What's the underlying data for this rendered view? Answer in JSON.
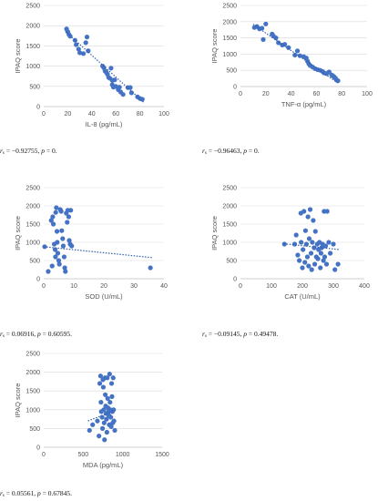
{
  "chart_data": [
    {
      "type": "scatter",
      "xlabel": "IL-8 (pg/mL)",
      "ylabel": "IPAQ score",
      "xlim": [
        0,
        100
      ],
      "ylim": [
        0,
        2500
      ],
      "xticks": [
        "0",
        "20",
        "40",
        "60",
        "80",
        "100"
      ],
      "yticks": [
        "0",
        "500",
        "1000",
        "1500",
        "2000",
        "2500"
      ],
      "trendline": {
        "style": "dotted",
        "x": [
          18,
          83
        ],
        "y": [
          1860,
          110
        ]
      },
      "grid": "horizontal",
      "stat_rs": "= −0.92755,",
      "stat_p": "= 0.",
      "points": [
        [
          19,
          1920
        ],
        [
          20,
          1850
        ],
        [
          21,
          1780
        ],
        [
          22,
          1740
        ],
        [
          26,
          1640
        ],
        [
          27,
          1530
        ],
        [
          29,
          1420
        ],
        [
          30,
          1330
        ],
        [
          33,
          1310
        ],
        [
          35,
          1580
        ],
        [
          36,
          1720
        ],
        [
          37,
          1380
        ],
        [
          49,
          1000
        ],
        [
          50,
          960
        ],
        [
          51,
          880
        ],
        [
          52,
          850
        ],
        [
          53,
          800
        ],
        [
          54,
          720
        ],
        [
          55,
          700
        ],
        [
          56,
          950
        ],
        [
          57,
          650
        ],
        [
          57,
          540
        ],
        [
          58,
          480
        ],
        [
          59,
          660
        ],
        [
          60,
          500
        ],
        [
          62,
          420
        ],
        [
          63,
          480
        ],
        [
          64,
          360
        ],
        [
          66,
          300
        ],
        [
          70,
          470
        ],
        [
          72,
          470
        ],
        [
          73,
          340
        ],
        [
          78,
          240
        ],
        [
          80,
          200
        ],
        [
          82,
          180
        ]
      ]
    },
    {
      "type": "scatter",
      "xlabel": "TNF-α (pg/mL)",
      "ylabel": "IPAQ score",
      "xlim": [
        0,
        100
      ],
      "ylim": [
        0,
        2500
      ],
      "xticks": [
        "0",
        "20",
        "40",
        "60",
        "80",
        "100"
      ],
      "yticks": [
        "0",
        "500",
        "1000",
        "1500",
        "2000",
        "2500"
      ],
      "trendline": {
        "style": "dotted",
        "x": [
          10,
          77
        ],
        "y": [
          1920,
          110
        ]
      },
      "grid": "horizontal",
      "stat_rs": "= −0.96463,",
      "stat_p": "= 0.",
      "points": [
        [
          11,
          1820
        ],
        [
          13,
          1850
        ],
        [
          15,
          1780
        ],
        [
          17,
          1800
        ],
        [
          18,
          1450
        ],
        [
          20,
          1930
        ],
        [
          25,
          1620
        ],
        [
          26,
          1560
        ],
        [
          28,
          1500
        ],
        [
          30,
          1350
        ],
        [
          33,
          1280
        ],
        [
          35,
          1300
        ],
        [
          38,
          1200
        ],
        [
          43,
          970
        ],
        [
          45,
          1100
        ],
        [
          47,
          950
        ],
        [
          50,
          920
        ],
        [
          52,
          880
        ],
        [
          53,
          780
        ],
        [
          54,
          700
        ],
        [
          55,
          650
        ],
        [
          57,
          600
        ],
        [
          59,
          550
        ],
        [
          61,
          520
        ],
        [
          63,
          500
        ],
        [
          65,
          460
        ],
        [
          66,
          420
        ],
        [
          68,
          400
        ],
        [
          70,
          450
        ],
        [
          72,
          360
        ],
        [
          73,
          330
        ],
        [
          74,
          300
        ],
        [
          75,
          260
        ],
        [
          76,
          200
        ],
        [
          77,
          180
        ]
      ]
    },
    {
      "type": "scatter",
      "xlabel": "SOD (U/mL)",
      "ylabel": "IPAQ score",
      "xlim": [
        0,
        40
      ],
      "ylim": [
        0,
        2500
      ],
      "xticks": [
        "0",
        "10",
        "20",
        "30",
        "40"
      ],
      "yticks": [
        "0",
        "500",
        "1000",
        "1500",
        "2000",
        "2500"
      ],
      "trendline": {
        "style": "dotted",
        "x": [
          0,
          36
        ],
        "y": [
          880,
          580
        ]
      },
      "grid": "horizontal",
      "stat_rs": "= 0.06916,",
      "stat_p": "= 0.60595.",
      "points": [
        [
          0.3,
          880
        ],
        [
          1.5,
          200
        ],
        [
          2.5,
          1600
        ],
        [
          2.8,
          350
        ],
        [
          3,
          1700
        ],
        [
          3.2,
          1500
        ],
        [
          3.5,
          950
        ],
        [
          3.8,
          800
        ],
        [
          3.9,
          600
        ],
        [
          4,
          1820
        ],
        [
          4.2,
          1950
        ],
        [
          4.4,
          1300
        ],
        [
          4.5,
          1000
        ],
        [
          4.7,
          700
        ],
        [
          5,
          500
        ],
        [
          5.2,
          400
        ],
        [
          5.5,
          1900
        ],
        [
          5.8,
          1850
        ],
        [
          6,
          1320
        ],
        [
          6.3,
          1100
        ],
        [
          6.5,
          900
        ],
        [
          6.8,
          600
        ],
        [
          7,
          300
        ],
        [
          7.2,
          200
        ],
        [
          7.5,
          1800
        ],
        [
          7.8,
          1550
        ],
        [
          8,
          1880
        ],
        [
          8.3,
          1700
        ],
        [
          8.5,
          1050
        ],
        [
          8.8,
          950
        ],
        [
          9,
          1880
        ],
        [
          9.3,
          900
        ],
        [
          35.5,
          300
        ]
      ]
    },
    {
      "type": "scatter",
      "xlabel": "CAT (U/mL)",
      "ylabel": "IPAQ score",
      "xlim": [
        0,
        400
      ],
      "ylim": [
        0,
        2500
      ],
      "xticks": [
        "0",
        "100",
        "200",
        "300",
        "400"
      ],
      "yticks": [
        "0",
        "500",
        "1000",
        "1500",
        "2000",
        "2500"
      ],
      "trendline": {
        "style": "dotted",
        "x": [
          140,
          320
        ],
        "y": [
          960,
          800
        ]
      },
      "grid": "horizontal",
      "stat_rs": "= −0.09145,",
      "stat_p": "= 0.49478.",
      "points": [
        [
          142,
          950
        ],
        [
          175,
          950
        ],
        [
          180,
          1200
        ],
        [
          185,
          650
        ],
        [
          190,
          500
        ],
        [
          195,
          1800
        ],
        [
          196,
          1000
        ],
        [
          200,
          300
        ],
        [
          202,
          800
        ],
        [
          205,
          1850
        ],
        [
          208,
          450
        ],
        [
          210,
          1320
        ],
        [
          213,
          950
        ],
        [
          216,
          600
        ],
        [
          218,
          1700
        ],
        [
          220,
          350
        ],
        [
          222,
          1100
        ],
        [
          225,
          1900
        ],
        [
          228,
          700
        ],
        [
          230,
          250
        ],
        [
          232,
          1000
        ],
        [
          235,
          1600
        ],
        [
          238,
          850
        ],
        [
          240,
          400
        ],
        [
          242,
          1300
        ],
        [
          245,
          600
        ],
        [
          248,
          950
        ],
        [
          250,
          550
        ],
        [
          252,
          800
        ],
        [
          255,
          1000
        ],
        [
          258,
          300
        ],
        [
          260,
          700
        ],
        [
          262,
          850
        ],
        [
          265,
          950
        ],
        [
          268,
          500
        ],
        [
          270,
          1850
        ],
        [
          272,
          600
        ],
        [
          275,
          900
        ],
        [
          278,
          400
        ],
        [
          280,
          1850
        ],
        [
          285,
          1000
        ],
        [
          290,
          700
        ],
        [
          300,
          950
        ],
        [
          305,
          250
        ],
        [
          315,
          400
        ]
      ]
    },
    {
      "type": "scatter",
      "xlabel": "MDA (pg/mL)",
      "ylabel": "IPAQ score",
      "xlim": [
        0,
        1500
      ],
      "ylim": [
        0,
        2500
      ],
      "xticks": [
        "0",
        "500",
        "1000",
        "1500"
      ],
      "yticks": [
        "0",
        "500",
        "1000",
        "1500",
        "2000",
        "2500"
      ],
      "trendline": {
        "style": "dotted",
        "x": [
          560,
          900
        ],
        "y": [
          700,
          980
        ]
      },
      "grid": "horizontal",
      "stat_rs": "= 0.05561,",
      "stat_p": "= 0.67845.",
      "points": [
        [
          580,
          450
        ],
        [
          620,
          600
        ],
        [
          680,
          700
        ],
        [
          700,
          300
        ],
        [
          710,
          1700
        ],
        [
          720,
          1900
        ],
        [
          725,
          1200
        ],
        [
          730,
          950
        ],
        [
          740,
          800
        ],
        [
          745,
          500
        ],
        [
          750,
          1800
        ],
        [
          755,
          1600
        ],
        [
          760,
          1000
        ],
        [
          765,
          650
        ],
        [
          770,
          200
        ],
        [
          775,
          1850
        ],
        [
          780,
          1400
        ],
        [
          785,
          1100
        ],
        [
          790,
          900
        ],
        [
          795,
          750
        ],
        [
          800,
          400
        ],
        [
          805,
          1850
        ],
        [
          810,
          1300
        ],
        [
          815,
          1050
        ],
        [
          820,
          950
        ],
        [
          825,
          850
        ],
        [
          830,
          600
        ],
        [
          835,
          1950
        ],
        [
          840,
          1200
        ],
        [
          845,
          1000
        ],
        [
          850,
          800
        ],
        [
          855,
          550
        ],
        [
          860,
          1700
        ],
        [
          865,
          1350
        ],
        [
          870,
          950
        ],
        [
          875,
          650
        ],
        [
          880,
          1850
        ],
        [
          885,
          1000
        ],
        [
          890,
          700
        ],
        [
          900,
          450
        ]
      ]
    }
  ]
}
